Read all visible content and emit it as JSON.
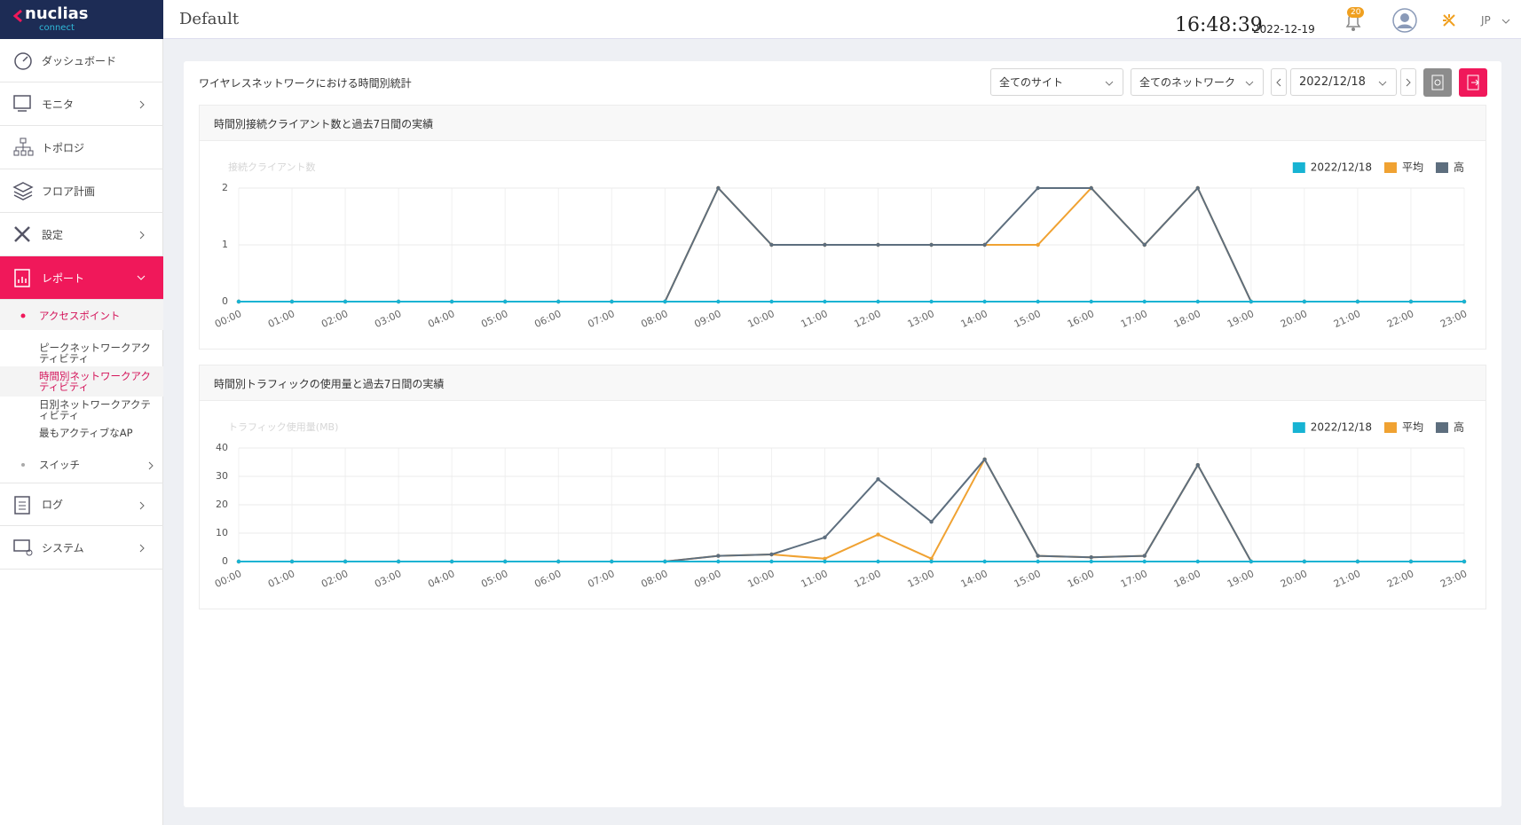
{
  "header": {
    "logo": "nuclias",
    "logo_sub": "connect",
    "title": "Default",
    "time": "16:48:39",
    "date": "2022-12-19",
    "notifications": "20",
    "lang": "JP"
  },
  "sidebar": {
    "dashboard": "ダッシュボード",
    "monitor": "モニタ",
    "topology": "トポロジ",
    "floor": "フロア計画",
    "settings": "設定",
    "report": "レポート",
    "access_point": "アクセスポイント",
    "peak": "ピークネットワークアクティビティ",
    "hourly": "時間別ネットワークアクティビティ",
    "daily": "日別ネットワークアクティビティ",
    "most_active": "最もアクティブなAP",
    "switch": "スイッチ",
    "log": "ログ",
    "system": "システム"
  },
  "report": {
    "title": "ワイヤレスネットワークにおける時間別統計",
    "site": "全てのサイト",
    "network": "全てのネットワーク",
    "date": "2022/12/18"
  },
  "chart_data": [
    {
      "type": "line",
      "title": "時間別接続クライアント数と過去7日間の実績",
      "y_label": "接続クライアント数",
      "categories": [
        "00:00",
        "01:00",
        "02:00",
        "03:00",
        "04:00",
        "05:00",
        "06:00",
        "07:00",
        "08:00",
        "09:00",
        "10:00",
        "11:00",
        "12:00",
        "13:00",
        "14:00",
        "15:00",
        "16:00",
        "17:00",
        "18:00",
        "19:00",
        "20:00",
        "21:00",
        "22:00",
        "23:00"
      ],
      "series": [
        {
          "name": "2022/12/18",
          "color": "#17b3d3",
          "values": [
            0,
            0,
            0,
            0,
            0,
            0,
            0,
            0,
            0,
            0,
            0,
            0,
            0,
            0,
            0,
            0,
            0,
            0,
            0,
            0,
            0,
            0,
            0,
            0
          ]
        },
        {
          "name": "平均",
          "color": "#f0a232",
          "values": [
            0,
            0,
            0,
            0,
            0,
            0,
            0,
            0,
            0,
            2,
            1,
            1,
            1,
            1,
            1,
            1,
            2,
            1,
            2,
            0,
            0,
            0,
            0,
            0
          ]
        },
        {
          "name": "高",
          "color": "#5d6e7e",
          "values": [
            0,
            0,
            0,
            0,
            0,
            0,
            0,
            0,
            0,
            2,
            1,
            1,
            1,
            1,
            1,
            2,
            2,
            1,
            2,
            0,
            0,
            0,
            0,
            0
          ]
        }
      ],
      "ylim": [
        0,
        2
      ],
      "yticks": [
        0,
        1,
        2
      ],
      "grid": true,
      "legend": "top-right"
    },
    {
      "type": "line",
      "title": "時間別トラフィックの使用量と過去7日間の実績",
      "y_label": "トラフィック使用量(MB)",
      "categories": [
        "00:00",
        "01:00",
        "02:00",
        "03:00",
        "04:00",
        "05:00",
        "06:00",
        "07:00",
        "08:00",
        "09:00",
        "10:00",
        "11:00",
        "12:00",
        "13:00",
        "14:00",
        "15:00",
        "16:00",
        "17:00",
        "18:00",
        "19:00",
        "20:00",
        "21:00",
        "22:00",
        "23:00"
      ],
      "series": [
        {
          "name": "2022/12/18",
          "color": "#17b3d3",
          "values": [
            0,
            0,
            0,
            0,
            0,
            0,
            0,
            0,
            0,
            0,
            0,
            0,
            0,
            0,
            0,
            0,
            0,
            0,
            0,
            0,
            0,
            0,
            0,
            0
          ]
        },
        {
          "name": "平均",
          "color": "#f0a232",
          "values": [
            0,
            0,
            0,
            0,
            0,
            0,
            0,
            0,
            0,
            2,
            2.5,
            1,
            9.5,
            1,
            36,
            2,
            1.5,
            2,
            34,
            0,
            0,
            0,
            0,
            0
          ]
        },
        {
          "name": "高",
          "color": "#5d6e7e",
          "values": [
            0,
            0,
            0,
            0,
            0,
            0,
            0,
            0,
            0,
            2,
            2.5,
            8.5,
            29,
            14,
            36,
            2,
            1.5,
            2,
            34,
            0,
            0,
            0,
            0,
            0
          ]
        }
      ],
      "ylim": [
        0,
        40
      ],
      "yticks": [
        0,
        10,
        20,
        30,
        40
      ],
      "grid": true,
      "legend": "top-right"
    }
  ]
}
